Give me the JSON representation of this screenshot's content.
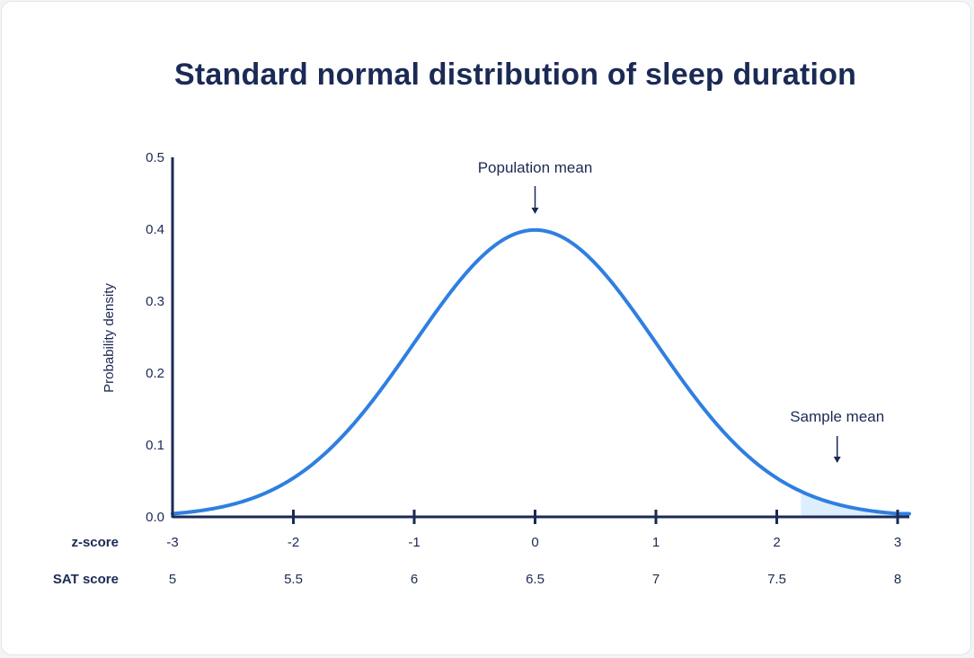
{
  "chart_data": {
    "type": "line",
    "title": "Standard normal distribution of sleep duration",
    "ylabel": "Probability density",
    "xlabel": "",
    "xlim": [
      -3,
      3
    ],
    "ylim": [
      0,
      0.5
    ],
    "y_ticks": [
      "0.0",
      "0.1",
      "0.2",
      "0.3",
      "0.4",
      "0.5"
    ],
    "x_rows": [
      {
        "label": "z-score",
        "ticks": [
          "-3",
          "-2",
          "-1",
          "0",
          "1",
          "2",
          "3"
        ]
      },
      {
        "label": "SAT score",
        "ticks": [
          "5",
          "5.5",
          "6",
          "6.5",
          "7",
          "7.5",
          "8"
        ]
      }
    ],
    "series": [
      {
        "distribution": "standard normal",
        "mean": 0,
        "sd": 1
      }
    ],
    "shaded_region": {
      "from": 2.2,
      "to": 3
    },
    "annotations": [
      {
        "label": "Population mean",
        "x": 0
      },
      {
        "label": "Sample mean",
        "x": 2.5
      }
    ],
    "grid": false,
    "colors": {
      "curve": "#2f7fe0",
      "shade": "#ddeefd",
      "axis": "#1b2a55",
      "text": "#1b2a55"
    }
  }
}
